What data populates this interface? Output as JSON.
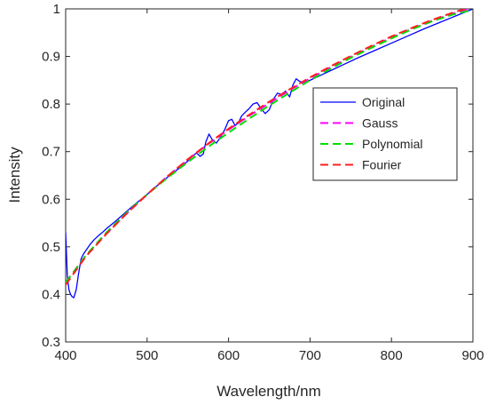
{
  "chart_data": {
    "type": "line",
    "xlabel": "Wavelength/nm",
    "ylabel": "Intensity",
    "xlim": [
      400,
      900
    ],
    "ylim": [
      0.3,
      1.0
    ],
    "x_ticks": [
      400,
      500,
      600,
      700,
      800,
      900
    ],
    "y_ticks": [
      0.3,
      0.4,
      0.5,
      0.6,
      0.7,
      0.8,
      0.9,
      1.0
    ],
    "y_tick_labels": [
      "0.3",
      "0.4",
      "0.5",
      "0.6",
      "0.7",
      "0.8",
      "0.9",
      "1"
    ],
    "grid": false,
    "legend_position": "right",
    "series": [
      {
        "name": "Original",
        "color": "#0000ff",
        "style": "solid",
        "x": [
          400,
          402,
          404,
          406,
          408,
          410,
          413,
          416,
          419,
          422,
          426,
          430,
          435,
          440,
          445,
          450,
          460,
          470,
          480,
          490,
          500,
          510,
          520,
          530,
          540,
          550,
          556,
          561,
          565,
          569,
          572,
          576,
          580,
          585,
          590,
          595,
          600,
          604,
          608,
          612,
          616,
          620,
          625,
          630,
          635,
          640,
          645,
          650,
          655,
          660,
          665,
          670,
          675,
          679,
          683,
          687,
          692,
          700,
          720,
          740,
          760,
          780,
          800,
          820,
          840,
          860,
          880,
          900
        ],
        "y": [
          0.53,
          0.44,
          0.41,
          0.4,
          0.395,
          0.393,
          0.41,
          0.445,
          0.475,
          0.485,
          0.495,
          0.505,
          0.515,
          0.523,
          0.53,
          0.538,
          0.552,
          0.567,
          0.582,
          0.596,
          0.61,
          0.625,
          0.639,
          0.653,
          0.666,
          0.68,
          0.692,
          0.697,
          0.69,
          0.695,
          0.72,
          0.737,
          0.725,
          0.718,
          0.73,
          0.745,
          0.765,
          0.768,
          0.755,
          0.76,
          0.775,
          0.782,
          0.79,
          0.8,
          0.803,
          0.79,
          0.78,
          0.788,
          0.81,
          0.823,
          0.82,
          0.827,
          0.815,
          0.84,
          0.853,
          0.848,
          0.845,
          0.85,
          0.866,
          0.882,
          0.898,
          0.913,
          0.928,
          0.943,
          0.958,
          0.972,
          0.986,
          1.0
        ]
      },
      {
        "name": "Gauss",
        "color": "#ff00ff",
        "style": "dashed",
        "x": [
          400,
          425,
          450,
          475,
          500,
          525,
          550,
          575,
          600,
          625,
          650,
          675,
          700,
          725,
          750,
          775,
          800,
          825,
          850,
          875,
          900
        ],
        "y": [
          0.425,
          0.482,
          0.528,
          0.57,
          0.61,
          0.648,
          0.683,
          0.716,
          0.746,
          0.775,
          0.802,
          0.829,
          0.854,
          0.877,
          0.899,
          0.92,
          0.94,
          0.958,
          0.975,
          0.99,
          1.003
        ]
      },
      {
        "name": "Polynomial",
        "color": "#00dd00",
        "style": "dashed",
        "x": [
          400,
          425,
          450,
          475,
          500,
          525,
          550,
          575,
          600,
          625,
          650,
          675,
          700,
          725,
          750,
          775,
          800,
          825,
          850,
          875,
          900
        ],
        "y": [
          0.425,
          0.482,
          0.53,
          0.572,
          0.61,
          0.645,
          0.678,
          0.71,
          0.74,
          0.769,
          0.797,
          0.824,
          0.85,
          0.874,
          0.897,
          0.918,
          0.938,
          0.957,
          0.974,
          0.988,
          0.998
        ]
      },
      {
        "name": "Fourier",
        "color": "#ff2020",
        "style": "dashed",
        "x": [
          400,
          425,
          450,
          475,
          500,
          525,
          550,
          575,
          600,
          625,
          650,
          675,
          700,
          725,
          750,
          775,
          800,
          825,
          850,
          875,
          900
        ],
        "y": [
          0.42,
          0.48,
          0.527,
          0.57,
          0.61,
          0.648,
          0.684,
          0.717,
          0.748,
          0.777,
          0.805,
          0.831,
          0.856,
          0.879,
          0.901,
          0.922,
          0.942,
          0.96,
          0.977,
          0.992,
          1.005
        ]
      }
    ]
  }
}
